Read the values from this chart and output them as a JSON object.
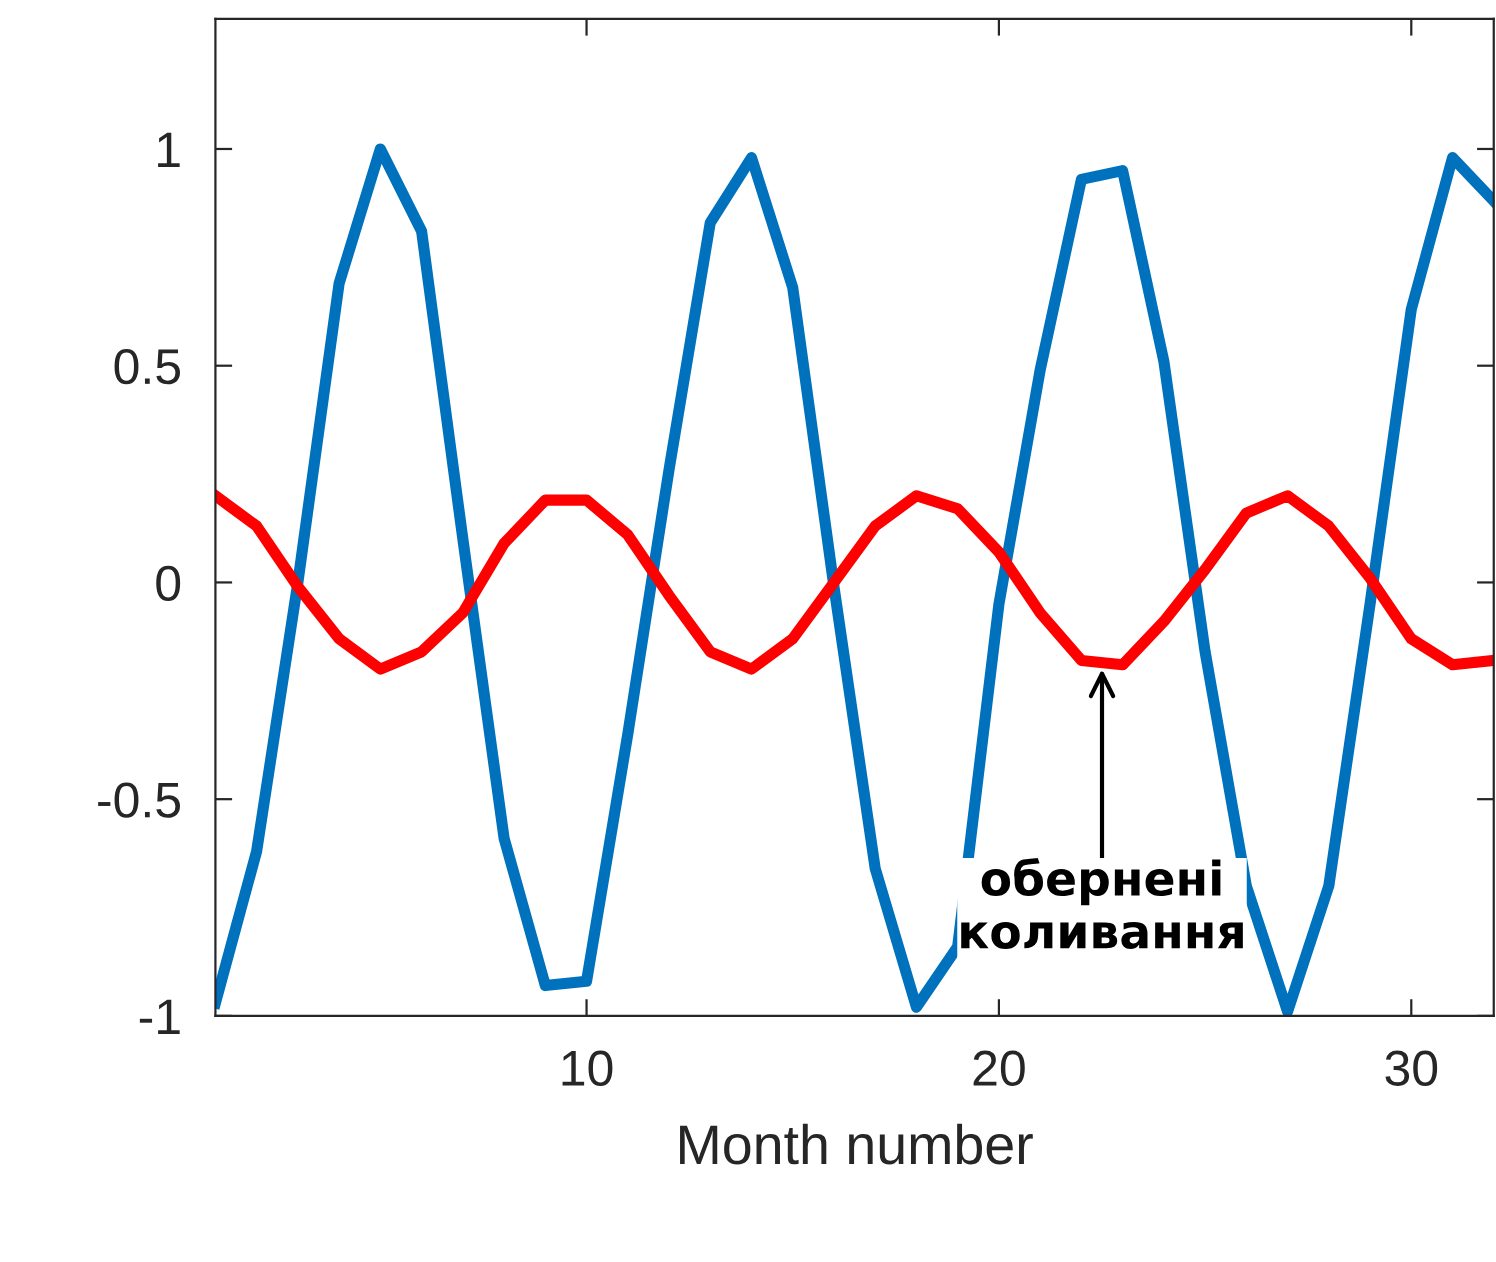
{
  "chart_data": {
    "type": "line",
    "xlabel": "Month number",
    "x": [
      1,
      2,
      3,
      4,
      5,
      6,
      7,
      8,
      9,
      10,
      11,
      12,
      13,
      14,
      15,
      16,
      17,
      18,
      19,
      20,
      21,
      22,
      23,
      24,
      25,
      26,
      27,
      28,
      29,
      30,
      31,
      32
    ],
    "series": [
      {
        "color": "#0072bd",
        "values": [
          -0.97,
          -0.62,
          0.0,
          0.69,
          1.0,
          0.81,
          0.1,
          -0.59,
          -0.93,
          -0.92,
          -0.35,
          0.26,
          0.83,
          0.98,
          0.68,
          -0.01,
          -0.66,
          -0.98,
          -0.84,
          -0.05,
          0.49,
          0.93,
          0.95,
          0.51,
          -0.16,
          -0.7,
          -0.99,
          -0.7,
          -0.05,
          0.63,
          0.98,
          0.88
        ]
      },
      {
        "color": "#ff0000",
        "values": [
          0.2,
          0.13,
          -0.01,
          -0.13,
          -0.2,
          -0.16,
          -0.07,
          0.09,
          0.19,
          0.19,
          0.11,
          -0.03,
          -0.16,
          -0.2,
          -0.13,
          0.0,
          0.13,
          0.2,
          0.17,
          0.07,
          -0.07,
          -0.18,
          -0.19,
          -0.09,
          0.03,
          0.16,
          0.2,
          0.13,
          0.01,
          -0.13,
          -0.19,
          -0.18
        ]
      }
    ],
    "xlim": [
      1,
      32
    ],
    "xticks": [
      10,
      20,
      30
    ],
    "ylim": [
      -1,
      1.3
    ],
    "yticks": [
      {
        "value": -1,
        "label": "-1"
      },
      {
        "value": -0.5,
        "label": "-0.5"
      },
      0,
      0.5,
      1
    ],
    "grid": false,
    "legend": false,
    "marker": "none",
    "line_style": "solid",
    "annotations": [
      {
        "text": "обернені\nколивання",
        "x": 22.5,
        "y": -0.2
      }
    ]
  }
}
